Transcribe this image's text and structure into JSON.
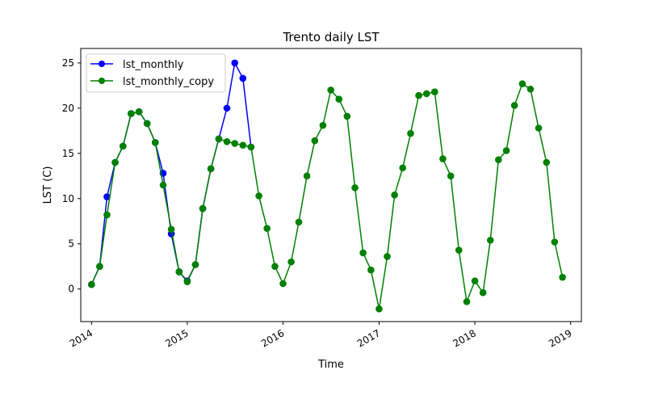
{
  "chart_data": {
    "type": "line",
    "title": "Trento daily LST",
    "xlabel": "Time",
    "ylabel": "LST (C)",
    "xlim": [
      "2013-11-21",
      "2019-02-11"
    ],
    "ylim": [
      -3.6,
      26.6
    ],
    "x_ticks": [
      "2014",
      "2015",
      "2016",
      "2017",
      "2018",
      "2019"
    ],
    "y_ticks": [
      0,
      5,
      10,
      15,
      20,
      25
    ],
    "grid": false,
    "legend": "top-left",
    "series": [
      {
        "name": "lst_monthly",
        "color": "#0000ff",
        "marker": "circle",
        "points": [
          [
            "2014-01-01",
            0.5
          ],
          [
            "2014-02-01",
            2.5
          ],
          [
            "2014-03-01",
            10.2
          ],
          [
            "2014-04-01",
            14.0
          ],
          [
            "2014-05-01",
            15.8
          ],
          [
            "2014-06-01",
            19.4
          ],
          [
            "2014-07-01",
            19.6
          ],
          [
            "2014-08-01",
            18.3
          ],
          [
            "2014-09-01",
            16.2
          ],
          [
            "2014-10-01",
            12.8
          ],
          [
            "2014-11-01",
            6.1
          ],
          [
            "2014-12-01",
            1.9
          ],
          [
            "2015-01-01",
            0.9
          ],
          [
            "2015-02-01",
            2.7
          ],
          [
            "2015-03-01",
            8.9
          ],
          [
            "2015-04-01",
            13.3
          ],
          [
            "2015-05-01",
            16.6
          ],
          [
            "2015-06-01",
            20.0
          ],
          [
            "2015-07-01",
            25.0
          ],
          [
            "2015-08-01",
            23.3
          ],
          [
            "2015-09-01",
            15.7
          ]
        ]
      },
      {
        "name": "lst_monthly_copy",
        "color": "#008000",
        "marker": "circle",
        "points": [
          [
            "2014-01-01",
            0.5
          ],
          [
            "2014-02-01",
            2.5
          ],
          [
            "2014-03-01",
            8.2
          ],
          [
            "2014-04-01",
            14.0
          ],
          [
            "2014-05-01",
            15.8
          ],
          [
            "2014-06-01",
            19.4
          ],
          [
            "2014-07-01",
            19.6
          ],
          [
            "2014-08-01",
            18.3
          ],
          [
            "2014-09-01",
            16.2
          ],
          [
            "2014-10-01",
            11.5
          ],
          [
            "2014-11-01",
            6.6
          ],
          [
            "2014-12-01",
            1.9
          ],
          [
            "2015-01-01",
            0.8
          ],
          [
            "2015-02-01",
            2.7
          ],
          [
            "2015-03-01",
            8.9
          ],
          [
            "2015-04-01",
            13.3
          ],
          [
            "2015-05-01",
            16.6
          ],
          [
            "2015-06-01",
            16.3
          ],
          [
            "2015-07-01",
            16.1
          ],
          [
            "2015-08-01",
            15.9
          ],
          [
            "2015-09-01",
            15.7
          ],
          [
            "2015-10-01",
            10.3
          ],
          [
            "2015-11-01",
            6.7
          ],
          [
            "2015-12-01",
            2.5
          ],
          [
            "2016-01-01",
            0.6
          ],
          [
            "2016-02-01",
            3.0
          ],
          [
            "2016-03-01",
            7.4
          ],
          [
            "2016-04-01",
            12.5
          ],
          [
            "2016-05-01",
            16.4
          ],
          [
            "2016-06-01",
            18.1
          ],
          [
            "2016-07-01",
            22.0
          ],
          [
            "2016-08-01",
            21.0
          ],
          [
            "2016-09-01",
            19.1
          ],
          [
            "2016-10-01",
            11.2
          ],
          [
            "2016-11-01",
            4.0
          ],
          [
            "2016-12-01",
            2.1
          ],
          [
            "2017-01-01",
            -2.2
          ],
          [
            "2017-02-01",
            3.6
          ],
          [
            "2017-03-01",
            10.4
          ],
          [
            "2017-04-01",
            13.4
          ],
          [
            "2017-05-01",
            17.2
          ],
          [
            "2017-06-01",
            21.4
          ],
          [
            "2017-07-01",
            21.6
          ],
          [
            "2017-08-01",
            21.8
          ],
          [
            "2017-09-01",
            14.4
          ],
          [
            "2017-10-01",
            12.5
          ],
          [
            "2017-11-01",
            4.3
          ],
          [
            "2017-12-01",
            -1.4
          ],
          [
            "2018-01-01",
            0.9
          ],
          [
            "2018-02-01",
            -0.4
          ],
          [
            "2018-03-01",
            5.4
          ],
          [
            "2018-04-01",
            14.3
          ],
          [
            "2018-05-01",
            15.3
          ],
          [
            "2018-06-01",
            20.3
          ],
          [
            "2018-07-01",
            22.7
          ],
          [
            "2018-08-01",
            22.1
          ],
          [
            "2018-09-01",
            17.8
          ],
          [
            "2018-10-01",
            14.0
          ],
          [
            "2018-11-01",
            5.2
          ],
          [
            "2018-12-01",
            1.3
          ]
        ]
      }
    ]
  }
}
